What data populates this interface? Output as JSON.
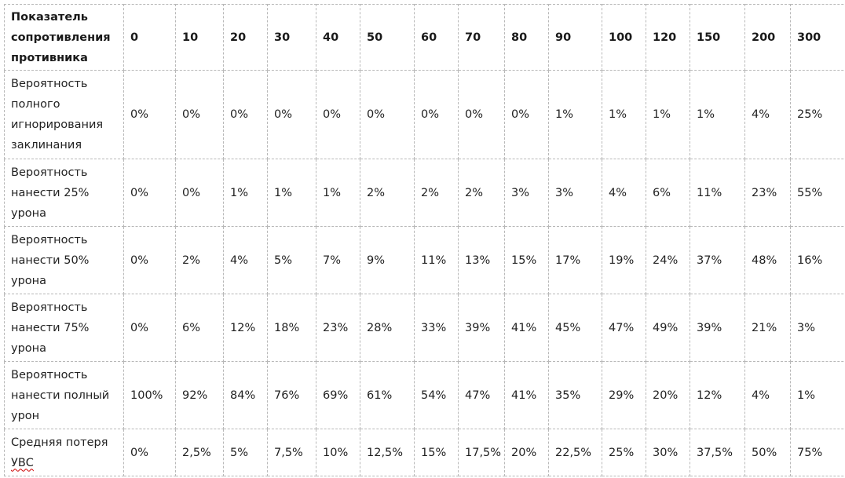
{
  "table": {
    "header_label": "Показатель сопротивления противника",
    "columns": [
      "0",
      "10",
      "20",
      "30",
      "40",
      "50",
      "60",
      "70",
      "80",
      "90",
      "100",
      "120",
      "150",
      "200",
      "300"
    ],
    "rows": [
      {
        "label": "Вероятность полного игнорирования заклинания",
        "values": [
          "0%",
          "0%",
          "0%",
          "0%",
          "0%",
          "0%",
          "0%",
          "0%",
          "0%",
          "1%",
          "1%",
          "1%",
          "1%",
          "4%",
          "25%"
        ]
      },
      {
        "label": "Вероятность нанести 25% урона",
        "values": [
          "0%",
          "0%",
          "1%",
          "1%",
          "1%",
          "2%",
          "2%",
          "2%",
          "3%",
          "3%",
          "4%",
          "6%",
          "11%",
          "23%",
          "55%"
        ]
      },
      {
        "label": "Вероятность нанести 50% урона",
        "values": [
          "0%",
          "2%",
          "4%",
          "5%",
          "7%",
          "9%",
          "11%",
          "13%",
          "15%",
          "17%",
          "19%",
          "24%",
          "37%",
          "48%",
          "16%"
        ]
      },
      {
        "label": "Вероятность нанести 75% урона",
        "values": [
          "0%",
          "6%",
          "12%",
          "18%",
          "23%",
          "28%",
          "33%",
          "39%",
          "41%",
          "45%",
          "47%",
          "49%",
          "39%",
          "21%",
          "3%"
        ]
      },
      {
        "label": "Вероятность нанести полный урон",
        "values": [
          "100%",
          "92%",
          "84%",
          "76%",
          "69%",
          "61%",
          "54%",
          "47%",
          "41%",
          "35%",
          "29%",
          "20%",
          "12%",
          "4%",
          "1%"
        ]
      },
      {
        "label_prefix": "Средняя потеря ",
        "label_underlined": "УВС",
        "values": [
          "0%",
          "2,5%",
          "5%",
          "7,5%",
          "10%",
          "12,5%",
          "15%",
          "17,5%",
          "20%",
          "22,5%",
          "25%",
          "30%",
          "37,5%",
          "50%",
          "75%"
        ]
      }
    ]
  }
}
